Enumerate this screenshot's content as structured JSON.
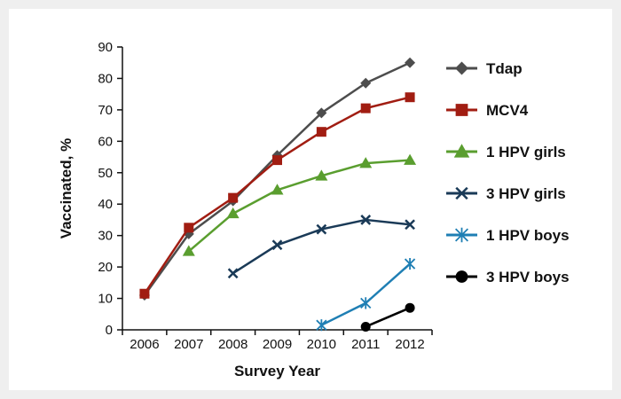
{
  "chart_data": {
    "type": "line",
    "title": "",
    "xlabel": "Survey Year",
    "ylabel": "Vaccinated, %",
    "x": [
      "2006",
      "2007",
      "2008",
      "2009",
      "2010",
      "2011",
      "2012"
    ],
    "ylim": [
      0,
      90
    ],
    "yticks": [
      0,
      10,
      20,
      30,
      40,
      50,
      60,
      70,
      80,
      90
    ],
    "grid": false,
    "legend_position": "right",
    "series": [
      {
        "name": "Tdap",
        "color": "#4d4d4d",
        "marker": "diamond",
        "values": [
          11,
          30.5,
          41,
          55.5,
          69,
          78.5,
          85
        ]
      },
      {
        "name": "MCV4",
        "color": "#a11d12",
        "marker": "square",
        "values": [
          11.5,
          32.5,
          42,
          54,
          63,
          70.5,
          74
        ]
      },
      {
        "name": "1 HPV girls",
        "color": "#5a9e2f",
        "marker": "triangle",
        "values": [
          null,
          25,
          37,
          44.5,
          49,
          53,
          54
        ]
      },
      {
        "name": "3 HPV girls",
        "color": "#1a3a57",
        "marker": "x",
        "values": [
          null,
          null,
          18,
          27,
          32,
          35,
          33.5
        ]
      },
      {
        "name": "1 HPV boys",
        "color": "#1f7fb4",
        "marker": "asterisk",
        "values": [
          null,
          null,
          null,
          null,
          1.5,
          8.5,
          21
        ]
      },
      {
        "name": "3 HPV boys",
        "color": "#000000",
        "marker": "circle",
        "values": [
          null,
          null,
          null,
          null,
          null,
          1,
          7
        ]
      }
    ]
  }
}
